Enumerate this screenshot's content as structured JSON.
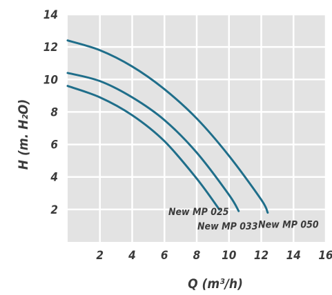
{
  "chart_data": {
    "type": "line",
    "xlabel": "Q (m³/h)",
    "ylabel": "H (m. H₂O)",
    "xlim": [
      0,
      16
    ],
    "ylim": [
      0,
      14
    ],
    "xticks": [
      2,
      4,
      6,
      8,
      10,
      12,
      14,
      16
    ],
    "yticks": [
      2,
      4,
      6,
      8,
      10,
      12,
      14
    ],
    "grid": true,
    "series": [
      {
        "name": "New MP 025",
        "color": "#1f6e8a",
        "x": [
          0,
          2,
          4,
          6,
          8,
          9.4
        ],
        "y": [
          9.6,
          8.9,
          7.8,
          6.2,
          3.9,
          2.0
        ]
      },
      {
        "name": "New MP 033",
        "color": "#1f6e8a",
        "x": [
          0,
          2,
          4,
          6,
          8,
          10,
          10.6
        ],
        "y": [
          10.4,
          9.9,
          8.9,
          7.5,
          5.5,
          2.9,
          1.9
        ]
      },
      {
        "name": "New MP 050",
        "color": "#1f6e8a",
        "x": [
          0,
          2,
          4,
          6,
          8,
          10,
          12,
          12.4
        ],
        "y": [
          12.4,
          11.8,
          10.8,
          9.4,
          7.6,
          5.3,
          2.6,
          1.8
        ]
      }
    ]
  }
}
